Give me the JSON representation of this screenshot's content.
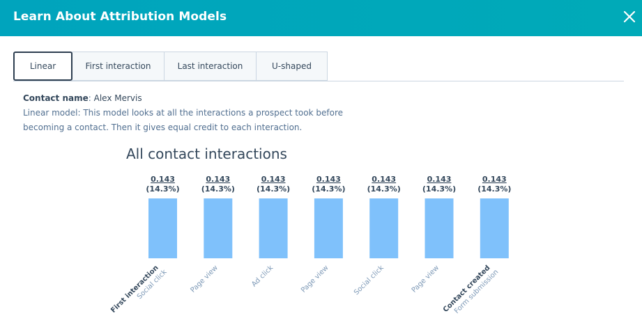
{
  "header": {
    "title": "Learn About Attribution Models",
    "close_icon": "close-icon"
  },
  "tabs": [
    {
      "label": "Linear",
      "active": true
    },
    {
      "label": "First interaction"
    },
    {
      "label": "Last interaction"
    },
    {
      "label": "U-shaped"
    }
  ],
  "info": {
    "contact_label": "Contact name",
    "contact_name": "Alex Mervis",
    "description_line1": "Linear model: This model looks at all the interactions a prospect took before",
    "description_line2": "becoming a contact. Then it gives equal credit to each interaction."
  },
  "colors": {
    "bar": "#7fc1fb",
    "header": "#00a4bd"
  },
  "chart_data": {
    "type": "bar",
    "title": "All contact interactions",
    "categories": [
      {
        "primary": "First interaction",
        "secondary": "Social click"
      },
      {
        "primary": "",
        "secondary": "Page view"
      },
      {
        "primary": "",
        "secondary": "Ad click"
      },
      {
        "primary": "",
        "secondary": "Page view"
      },
      {
        "primary": "",
        "secondary": "Social click"
      },
      {
        "primary": "",
        "secondary": "Page view"
      },
      {
        "primary": "Contact created",
        "secondary": "Form submission"
      }
    ],
    "values": [
      0.143,
      0.143,
      0.143,
      0.143,
      0.143,
      0.143,
      0.143
    ],
    "value_labels": [
      "0.143",
      "0.143",
      "0.143",
      "0.143",
      "0.143",
      "0.143",
      "0.143"
    ],
    "percent_labels": [
      "(14.3%)",
      "(14.3%)",
      "(14.3%)",
      "(14.3%)",
      "(14.3%)",
      "(14.3%)",
      "(14.3%)"
    ],
    "ylim": [
      0,
      0.143
    ],
    "grid": false
  }
}
